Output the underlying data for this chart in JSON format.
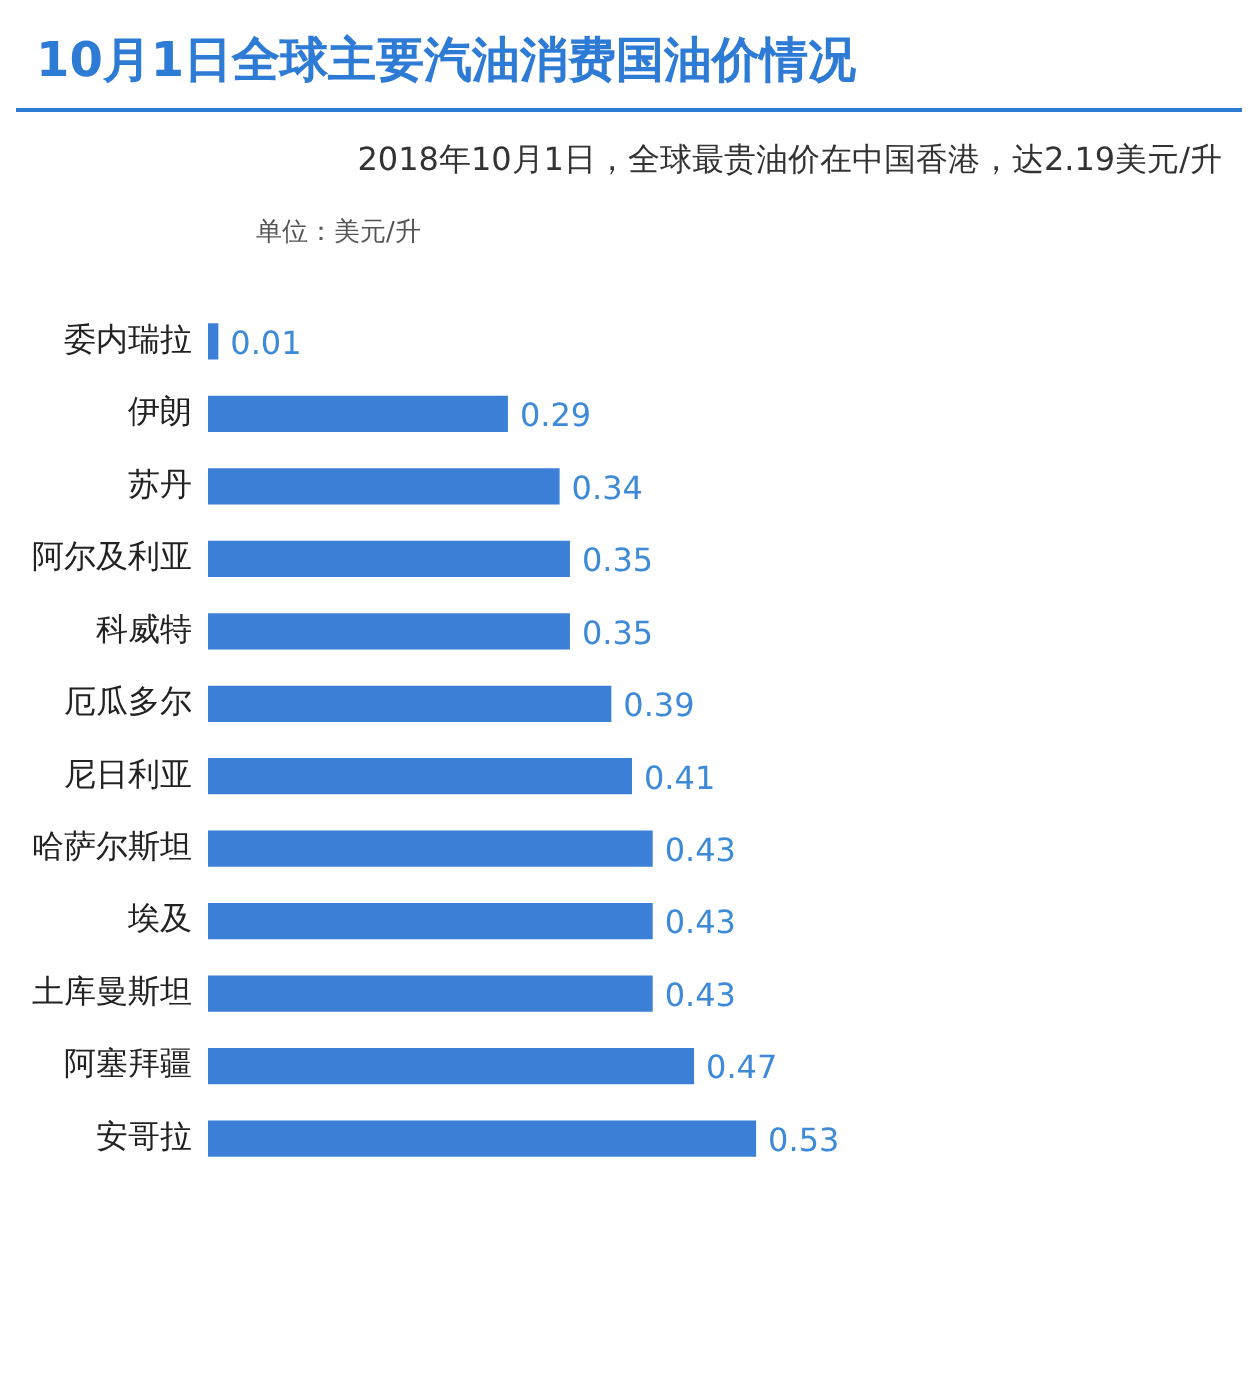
{
  "chart_data": {
    "type": "bar",
    "orientation": "horizontal",
    "title": "10月1日全球主要汽油消费国油价情况",
    "subtitle": "2018年10月1日，全球最贵油价在中国香港，达2.19美元/升",
    "annotations": [
      "单位：美元/升"
    ],
    "categories": [
      "委内瑞拉",
      "伊朗",
      "苏丹",
      "阿尔及利亚",
      "科威特",
      "厄瓜多尔",
      "尼日利亚",
      "哈萨尔斯坦",
      "埃及",
      "土库曼斯坦",
      "阿塞拜疆",
      "安哥拉"
    ],
    "values": [
      0.01,
      0.29,
      0.34,
      0.35,
      0.35,
      0.39,
      0.41,
      0.43,
      0.43,
      0.43,
      0.47,
      0.53
    ],
    "color": "#3b80d6",
    "data_labels": true,
    "grid": false,
    "legend": false,
    "tick_labels": "y"
  }
}
